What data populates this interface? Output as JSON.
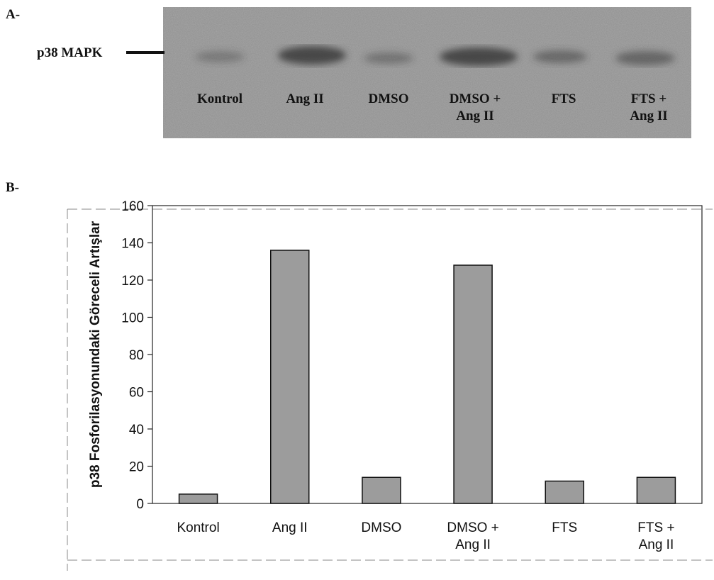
{
  "panel_a": {
    "label": "A-",
    "marker": "p38 MAPK",
    "lanes": [
      "Kontrol",
      "Ang II",
      "DMSO",
      "DMSO +\nAng II",
      "FTS",
      "FTS +\nAng II"
    ]
  },
  "panel_b_label": "B-",
  "chart_data": {
    "type": "bar",
    "y_label": "p38 Fosforilasyonundaki Göreceli Artışlar",
    "categories": [
      "Kontrol",
      "Ang II",
      "DMSO",
      "DMSO +\nAng II",
      "FTS",
      "FTS +\nAng II"
    ],
    "values": [
      5,
      136,
      14,
      128,
      12,
      14
    ],
    "color": "#9c9c9c",
    "ylim": [
      0,
      160
    ],
    "yticks": [
      0,
      20,
      40,
      60,
      80,
      100,
      120,
      140,
      160
    ]
  }
}
